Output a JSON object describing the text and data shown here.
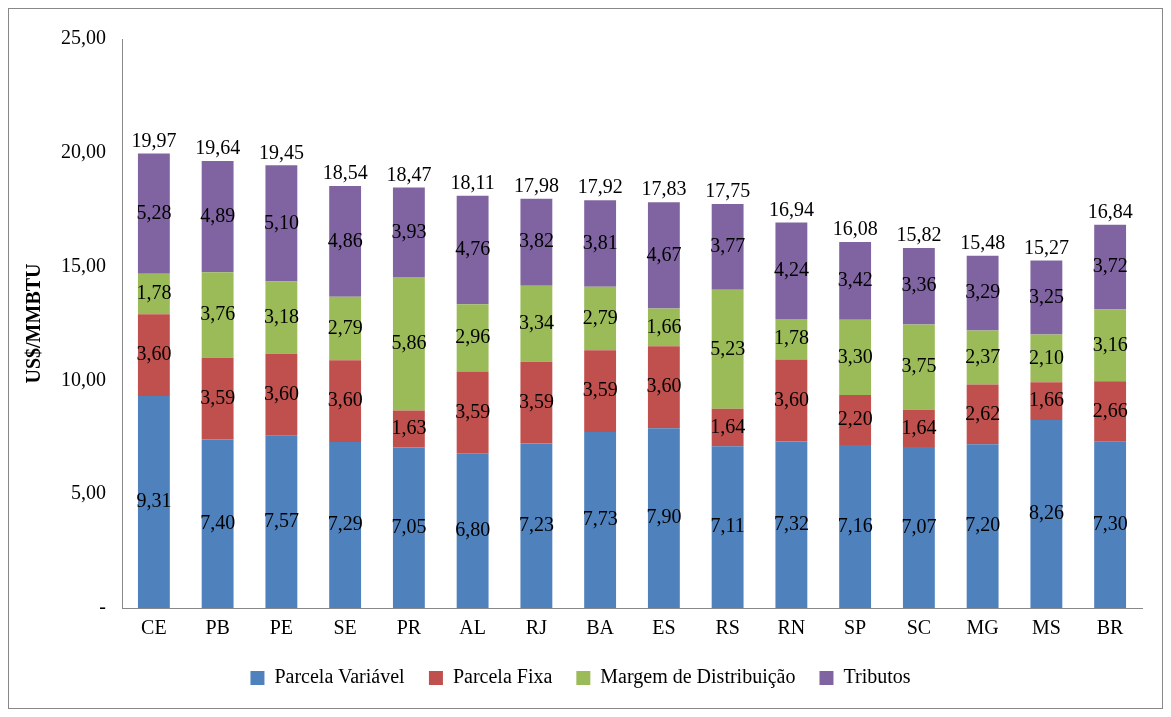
{
  "chart_data": {
    "type": "bar",
    "stacked": true,
    "ylabel": "US$/MMBTU",
    "categories": [
      "CE",
      "PB",
      "PE",
      "SE",
      "PR",
      "AL",
      "RJ",
      "BA",
      "ES",
      "RS",
      "RN",
      "SP",
      "SC",
      "MG",
      "MS",
      "BR"
    ],
    "ylim": [
      0,
      25
    ],
    "yticks": [
      {
        "value": 0,
        "label": "-"
      },
      {
        "value": 5,
        "label": "5,00"
      },
      {
        "value": 10,
        "label": "10,00"
      },
      {
        "value": 15,
        "label": "15,00"
      },
      {
        "value": 20,
        "label": "20,00"
      },
      {
        "value": 25,
        "label": "25,00"
      }
    ],
    "grid": false,
    "legend": "bottom",
    "series": [
      {
        "name": "Parcela Variável",
        "color": "#4f81bd",
        "values": [
          9.31,
          7.4,
          7.57,
          7.29,
          7.05,
          6.8,
          7.23,
          7.73,
          7.9,
          7.11,
          7.32,
          7.16,
          7.07,
          7.2,
          8.26,
          7.3
        ],
        "value_labels": [
          "9,31",
          "7,40",
          "7,57",
          "7,29",
          "7,05",
          "6,80",
          "7,23",
          "7,73",
          "7,90",
          "7,11",
          "7,32",
          "7,16",
          "7,07",
          "7,20",
          "8,26",
          "7,30"
        ]
      },
      {
        "name": "Parcela Fixa",
        "color": "#c0504d",
        "values": [
          3.6,
          3.59,
          3.6,
          3.6,
          1.63,
          3.59,
          3.59,
          3.59,
          3.6,
          1.64,
          3.6,
          2.2,
          1.64,
          2.62,
          1.66,
          2.66
        ],
        "value_labels": [
          "3,60",
          "3,59",
          "3,60",
          "3,60",
          "1,63",
          "3,59",
          "3,59",
          "3,59",
          "3,60",
          "1,64",
          "3,60",
          "2,20",
          "1,64",
          "2,62",
          "1,66",
          "2,66"
        ]
      },
      {
        "name": "Margem de Distribuição",
        "color": "#9bbb59",
        "values": [
          1.78,
          3.76,
          3.18,
          2.79,
          5.86,
          2.96,
          3.34,
          2.79,
          1.66,
          5.23,
          1.78,
          3.3,
          3.75,
          2.37,
          2.1,
          3.16
        ],
        "value_labels": [
          "1,78",
          "3,76",
          "3,18",
          "2,79",
          "5,86",
          "2,96",
          "3,34",
          "2,79",
          "1,66",
          "5,23",
          "1,78",
          "3,30",
          "3,75",
          "2,37",
          "2,10",
          "3,16"
        ]
      },
      {
        "name": "Tributos",
        "color": "#8064a2",
        "values": [
          5.28,
          4.89,
          5.1,
          4.86,
          3.93,
          4.76,
          3.82,
          3.81,
          4.67,
          3.77,
          4.24,
          3.42,
          3.36,
          3.29,
          3.25,
          3.72
        ],
        "value_labels": [
          "5,28",
          "4,89",
          "5,10",
          "4,86",
          "3,93",
          "4,76",
          "3,82",
          "3,81",
          "4,67",
          "3,77",
          "4,24",
          "3,42",
          "3,36",
          "3,29",
          "3,25",
          "3,72"
        ]
      }
    ],
    "totals": [
      "19,97",
      "19,64",
      "19,45",
      "18,54",
      "18,47",
      "18,11",
      "17,98",
      "17,92",
      "17,83",
      "17,75",
      "16,94",
      "16,08",
      "15,82",
      "15,48",
      "15,27",
      "16,84"
    ]
  }
}
